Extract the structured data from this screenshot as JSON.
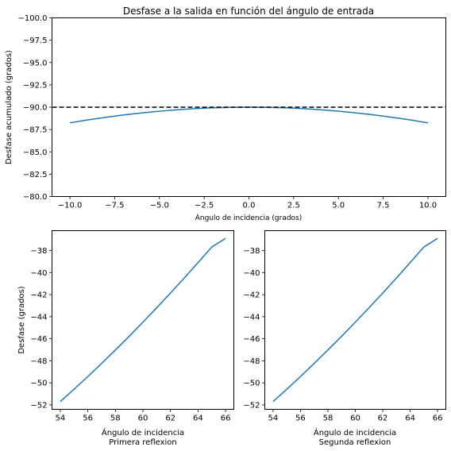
{
  "chart_data": [
    {
      "type": "line",
      "title": "Desfase a la salida en función del ángulo de entrada",
      "xlabel": "Ángulo de incidencia (grados)",
      "ylabel": "Desfase acumulado (grados)",
      "xlim": [
        -11,
        11
      ],
      "ylim": [
        -100,
        -80
      ],
      "y_inverted": true,
      "xticks": [
        -10.0,
        -7.5,
        -5.0,
        -2.5,
        0.0,
        2.5,
        5.0,
        7.5,
        10.0
      ],
      "xtick_labels": [
        "−10.0",
        "−7.5",
        "−5.0",
        "−2.5",
        "0.0",
        "2.5",
        "5.0",
        "7.5",
        "10.0"
      ],
      "yticks": [
        -100.0,
        -97.5,
        -95.0,
        -92.5,
        -90.0,
        -87.5,
        -85.0,
        -82.5,
        -80.0
      ],
      "ytick_labels": [
        "−100.0",
        "−97.5",
        "−95.0",
        "−92.5",
        "−90.0",
        "−87.5",
        "−85.0",
        "−82.5",
        "−80.0"
      ],
      "reference_line": {
        "y": -90,
        "style": "dashed",
        "color": "#000000"
      },
      "color": "#1f77b4",
      "series": [
        {
          "x": [
            -10,
            -9,
            -8,
            -7,
            -6,
            -5,
            -4,
            -3,
            -2,
            -1,
            0,
            1,
            2,
            3,
            4,
            5,
            6,
            7,
            8,
            9,
            10
          ],
          "y": [
            -88.25,
            -88.58,
            -88.87,
            -89.13,
            -89.36,
            -89.55,
            -89.71,
            -89.84,
            -89.93,
            -89.98,
            -90.0,
            -89.98,
            -89.93,
            -89.84,
            -89.71,
            -89.55,
            -89.36,
            -89.13,
            -88.87,
            -88.58,
            -88.25
          ]
        }
      ]
    },
    {
      "type": "line",
      "title": "",
      "xlabel": "Ángulo de incidencia",
      "xlabel2": "Primera reflexion",
      "ylabel": "Desfase (grados)",
      "xlim": [
        53.4,
        66.6
      ],
      "ylim": [
        -52.4,
        -36.2
      ],
      "xticks": [
        54,
        56,
        58,
        60,
        62,
        64,
        66
      ],
      "xtick_labels": [
        "54",
        "56",
        "58",
        "60",
        "62",
        "64",
        "66"
      ],
      "yticks": [
        -52,
        -50,
        -48,
        -46,
        -44,
        -42,
        -40,
        -38
      ],
      "ytick_labels": [
        "−52",
        "−50",
        "−48",
        "−46",
        "−44",
        "−42",
        "−40",
        "−38"
      ],
      "color": "#1f77b4",
      "series": [
        {
          "x": [
            54,
            55,
            56,
            57,
            58,
            59,
            60,
            61,
            62,
            63,
            64,
            65,
            66
          ],
          "y": [
            -51.7,
            -50.58,
            -49.43,
            -48.24,
            -47.02,
            -45.78,
            -44.5,
            -43.19,
            -41.86,
            -40.49,
            -39.1,
            -37.68,
            -36.9
          ]
        }
      ]
    },
    {
      "type": "line",
      "title": "",
      "xlabel": "Ángulo de incidencia",
      "xlabel2": "Segunda reflexion",
      "ylabel": "",
      "xlim": [
        53.4,
        66.6
      ],
      "ylim": [
        -52.4,
        -36.2
      ],
      "xticks": [
        54,
        56,
        58,
        60,
        62,
        64,
        66
      ],
      "xtick_labels": [
        "54",
        "56",
        "58",
        "60",
        "62",
        "64",
        "66"
      ],
      "yticks": [
        -52,
        -50,
        -48,
        -46,
        -44,
        -42,
        -40,
        -38
      ],
      "ytick_labels": [
        "−52",
        "−50",
        "−48",
        "−46",
        "−44",
        "−42",
        "−40",
        "−38"
      ],
      "color": "#1f77b4",
      "series": [
        {
          "x": [
            54,
            55,
            56,
            57,
            58,
            59,
            60,
            61,
            62,
            63,
            64,
            65,
            66
          ],
          "y": [
            -51.7,
            -50.58,
            -49.43,
            -48.24,
            -47.02,
            -45.78,
            -44.5,
            -43.19,
            -41.86,
            -40.49,
            -39.1,
            -37.68,
            -36.9
          ]
        }
      ]
    }
  ]
}
